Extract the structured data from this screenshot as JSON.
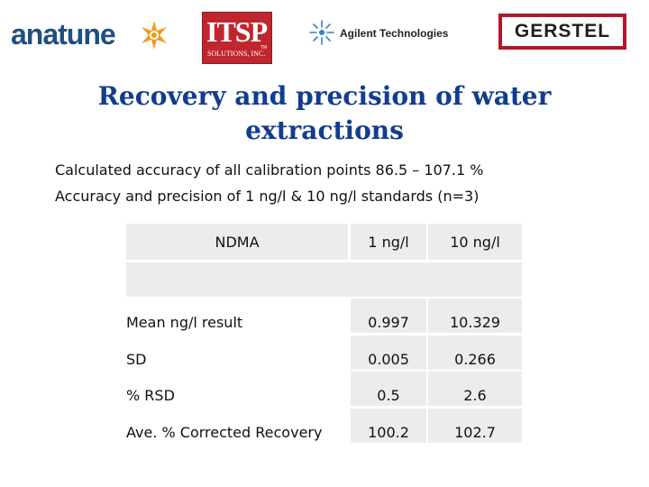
{
  "logos": {
    "anatune": "anatune",
    "itsp_main": "ITSP",
    "itsp_tm": "TM",
    "itsp_sub": "SOLUTIONS, INC.",
    "agilent": "Agilent Technologies",
    "gerstel": "GERSTEL"
  },
  "title": "Recovery and precision of water extractions",
  "lines": [
    "Calculated accuracy of all calibration points 86.5 – 107.1 %",
    "Accuracy and precision of 1 ng/l & 10 ng/l standards (n=3)"
  ],
  "table": {
    "header": {
      "label": "NDMA",
      "col1": "1 ng/l",
      "col2": "10 ng/l"
    },
    "rows": [
      {
        "label": "Mean ng/l result",
        "col1": "0.997",
        "col2": "10.329"
      },
      {
        "label": "SD",
        "col1": "0.005",
        "col2": "0.266"
      },
      {
        "label": "% RSD",
        "col1": "0.5",
        "col2": "2.6"
      },
      {
        "label": "Ave. % Corrected Recovery",
        "col1": "100.2",
        "col2": "102.7"
      }
    ]
  },
  "colors": {
    "title": "#123d8e",
    "table_shade": "#ececec",
    "anatune_blue": "#1f4f84",
    "anatune_orange": "#f39a1e",
    "itsp_red": "#c0262d",
    "gerstel_red": "#b0182a"
  },
  "icons": {
    "anatune_mark": "orange-star-icon",
    "agilent_mark": "spark-icon"
  }
}
